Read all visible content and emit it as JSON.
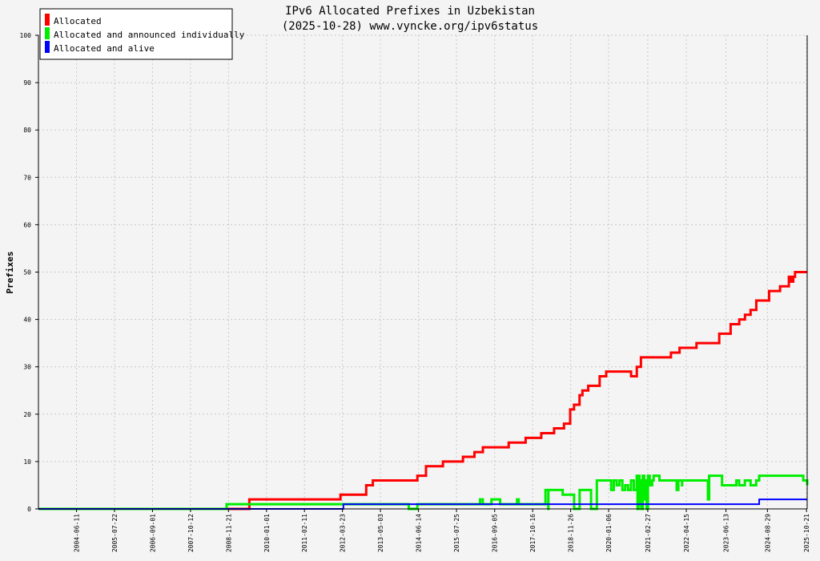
{
  "chart_data": {
    "type": "line",
    "title": "IPv6 Allocated Prefixes in Uzbekistan",
    "subtitle": "(2025-10-28) www.vyncke.org/ipv6status",
    "xlabel": "",
    "ylabel": "Prefixes",
    "ylim": [
      0,
      100
    ],
    "yticks": [
      0,
      10,
      20,
      30,
      40,
      50,
      60,
      70,
      80,
      90,
      100
    ],
    "xlim": [
      "2003-05-01",
      "2025-10-28"
    ],
    "xticks": [
      "2004-06-11",
      "2005-07-22",
      "2006-09-01",
      "2007-10-12",
      "2008-11-21",
      "2010-01-01",
      "2011-02-11",
      "2012-03-23",
      "2013-05-03",
      "2014-06-14",
      "2015-07-25",
      "2016-09-05",
      "2017-10-16",
      "2018-11-26",
      "2020-01-06",
      "2021-02-27",
      "2022-04-15",
      "2023-06-13",
      "2024-08-29",
      "2025-10-21"
    ],
    "grid": true,
    "legend_position": "top-left",
    "series": [
      {
        "name": "Allocated",
        "color": "#ff0000",
        "points": [
          [
            "2003-05-01",
            0
          ],
          [
            "2009-07-01",
            0
          ],
          [
            "2009-07-02",
            2
          ],
          [
            "2012-03-01",
            2
          ],
          [
            "2012-03-02",
            3
          ],
          [
            "2012-12-01",
            3
          ],
          [
            "2012-12-02",
            5
          ],
          [
            "2013-02-10",
            5
          ],
          [
            "2013-02-11",
            6
          ],
          [
            "2014-06-01",
            6
          ],
          [
            "2014-06-02",
            7
          ],
          [
            "2014-09-01",
            7
          ],
          [
            "2014-09-02",
            9
          ],
          [
            "2015-03-01",
            9
          ],
          [
            "2015-03-02",
            10
          ],
          [
            "2015-10-01",
            10
          ],
          [
            "2015-10-02",
            11
          ],
          [
            "2016-02-01",
            11
          ],
          [
            "2016-02-02",
            12
          ],
          [
            "2016-05-01",
            12
          ],
          [
            "2016-05-02",
            13
          ],
          [
            "2017-02-01",
            13
          ],
          [
            "2017-02-02",
            14
          ],
          [
            "2017-08-01",
            14
          ],
          [
            "2017-08-02",
            15
          ],
          [
            "2018-01-15",
            15
          ],
          [
            "2018-01-16",
            16
          ],
          [
            "2018-06-01",
            16
          ],
          [
            "2018-06-02",
            17
          ],
          [
            "2018-09-15",
            17
          ],
          [
            "2018-09-16",
            18
          ],
          [
            "2018-11-20",
            18
          ],
          [
            "2018-11-21",
            21
          ],
          [
            "2018-12-20",
            21
          ],
          [
            "2019-01-01",
            22
          ],
          [
            "2019-02-15",
            22
          ],
          [
            "2019-03-01",
            24
          ],
          [
            "2019-04-01",
            25
          ],
          [
            "2019-06-01",
            25
          ],
          [
            "2019-06-02",
            26
          ],
          [
            "2019-10-01",
            26
          ],
          [
            "2019-10-02",
            28
          ],
          [
            "2019-12-10",
            28
          ],
          [
            "2019-12-11",
            29
          ],
          [
            "2020-09-01",
            29
          ],
          [
            "2020-09-02",
            28
          ],
          [
            "2020-11-01",
            28
          ],
          [
            "2020-11-02",
            30
          ],
          [
            "2020-12-15",
            30
          ],
          [
            "2020-12-16",
            32
          ],
          [
            "2021-11-01",
            32
          ],
          [
            "2021-11-02",
            33
          ],
          [
            "2022-02-01",
            33
          ],
          [
            "2022-02-02",
            34
          ],
          [
            "2022-08-01",
            34
          ],
          [
            "2022-08-02",
            35
          ],
          [
            "2023-04-01",
            35
          ],
          [
            "2023-04-02",
            37
          ],
          [
            "2023-08-01",
            37
          ],
          [
            "2023-08-02",
            39
          ],
          [
            "2023-11-01",
            39
          ],
          [
            "2023-11-02",
            40
          ],
          [
            "2024-01-01",
            40
          ],
          [
            "2024-01-02",
            41
          ],
          [
            "2024-03-01",
            41
          ],
          [
            "2024-03-02",
            42
          ],
          [
            "2024-05-01",
            42
          ],
          [
            "2024-05-02",
            44
          ],
          [
            "2024-09-15",
            44
          ],
          [
            "2024-09-16",
            46
          ],
          [
            "2025-01-10",
            46
          ],
          [
            "2025-01-11",
            47
          ],
          [
            "2025-04-01",
            47
          ],
          [
            "2025-04-15",
            49
          ],
          [
            "2025-05-10",
            48
          ],
          [
            "2025-06-01",
            49
          ],
          [
            "2025-06-20",
            50
          ],
          [
            "2025-10-28",
            50
          ]
        ]
      },
      {
        "name": "Allocated and announced individually",
        "color": "#00ee00",
        "points": [
          [
            "2003-05-01",
            0
          ],
          [
            "2008-10-31",
            0
          ],
          [
            "2008-11-01",
            1
          ],
          [
            "2014-03-01",
            1
          ],
          [
            "2014-03-02",
            0
          ],
          [
            "2014-06-01",
            0
          ],
          [
            "2014-06-02",
            1
          ],
          [
            "2016-04-01",
            1
          ],
          [
            "2016-04-02",
            2
          ],
          [
            "2016-05-01",
            1
          ],
          [
            "2016-08-01",
            1
          ],
          [
            "2016-08-02",
            2
          ],
          [
            "2016-11-01",
            2
          ],
          [
            "2016-11-02",
            1
          ],
          [
            "2017-05-01",
            1
          ],
          [
            "2017-05-02",
            2
          ],
          [
            "2017-05-20",
            1
          ],
          [
            "2018-03-01",
            1
          ],
          [
            "2018-03-02",
            4
          ],
          [
            "2018-04-01",
            0
          ],
          [
            "2018-04-02",
            4
          ],
          [
            "2018-09-01",
            4
          ],
          [
            "2018-09-02",
            3
          ],
          [
            "2019-01-01",
            3
          ],
          [
            "2019-01-02",
            0
          ],
          [
            "2019-03-01",
            0
          ],
          [
            "2019-03-02",
            4
          ],
          [
            "2019-07-01",
            4
          ],
          [
            "2019-07-02",
            0
          ],
          [
            "2019-09-01",
            0
          ],
          [
            "2019-09-02",
            6
          ],
          [
            "2020-02-01",
            6
          ],
          [
            "2020-02-02",
            4
          ],
          [
            "2020-03-01",
            6
          ],
          [
            "2020-04-01",
            5
          ],
          [
            "2020-05-01",
            6
          ],
          [
            "2020-06-01",
            4
          ],
          [
            "2020-07-01",
            5
          ],
          [
            "2020-08-01",
            4
          ],
          [
            "2020-09-01",
            6
          ],
          [
            "2020-10-01",
            4
          ],
          [
            "2020-11-01",
            7
          ],
          [
            "2020-11-10",
            0
          ],
          [
            "2020-11-20",
            7
          ],
          [
            "2020-12-01",
            1
          ],
          [
            "2020-12-10",
            6
          ],
          [
            "2020-12-20",
            0
          ],
          [
            "2021-01-05",
            7
          ],
          [
            "2021-01-20",
            2
          ],
          [
            "2021-02-01",
            6
          ],
          [
            "2021-02-15",
            0
          ],
          [
            "2021-03-01",
            7
          ],
          [
            "2021-03-20",
            5
          ],
          [
            "2021-04-15",
            6
          ],
          [
            "2021-05-01",
            7
          ],
          [
            "2021-07-01",
            7
          ],
          [
            "2021-07-02",
            6
          ],
          [
            "2022-01-01",
            6
          ],
          [
            "2022-01-02",
            4
          ],
          [
            "2022-01-20",
            6
          ],
          [
            "2022-03-01",
            5
          ],
          [
            "2022-03-02",
            6
          ],
          [
            "2022-12-01",
            6
          ],
          [
            "2022-12-02",
            2
          ],
          [
            "2022-12-15",
            7
          ],
          [
            "2023-05-01",
            7
          ],
          [
            "2023-05-02",
            5
          ],
          [
            "2023-10-01",
            5
          ],
          [
            "2023-10-02",
            6
          ],
          [
            "2023-11-01",
            5
          ],
          [
            "2024-01-01",
            6
          ],
          [
            "2024-03-01",
            6
          ],
          [
            "2024-03-02",
            5
          ],
          [
            "2024-05-01",
            6
          ],
          [
            "2024-06-01",
            6
          ],
          [
            "2024-06-02",
            7
          ],
          [
            "2025-09-15",
            7
          ],
          [
            "2025-09-16",
            6
          ],
          [
            "2025-10-28",
            5
          ]
        ]
      },
      {
        "name": "Allocated and alive",
        "color": "#0000ff",
        "points": [
          [
            "2003-05-01",
            0
          ],
          [
            "2012-04-01",
            0
          ],
          [
            "2012-04-02",
            1
          ],
          [
            "2024-06-01",
            1
          ],
          [
            "2024-06-02",
            2
          ],
          [
            "2025-10-28",
            2
          ]
        ]
      }
    ]
  }
}
